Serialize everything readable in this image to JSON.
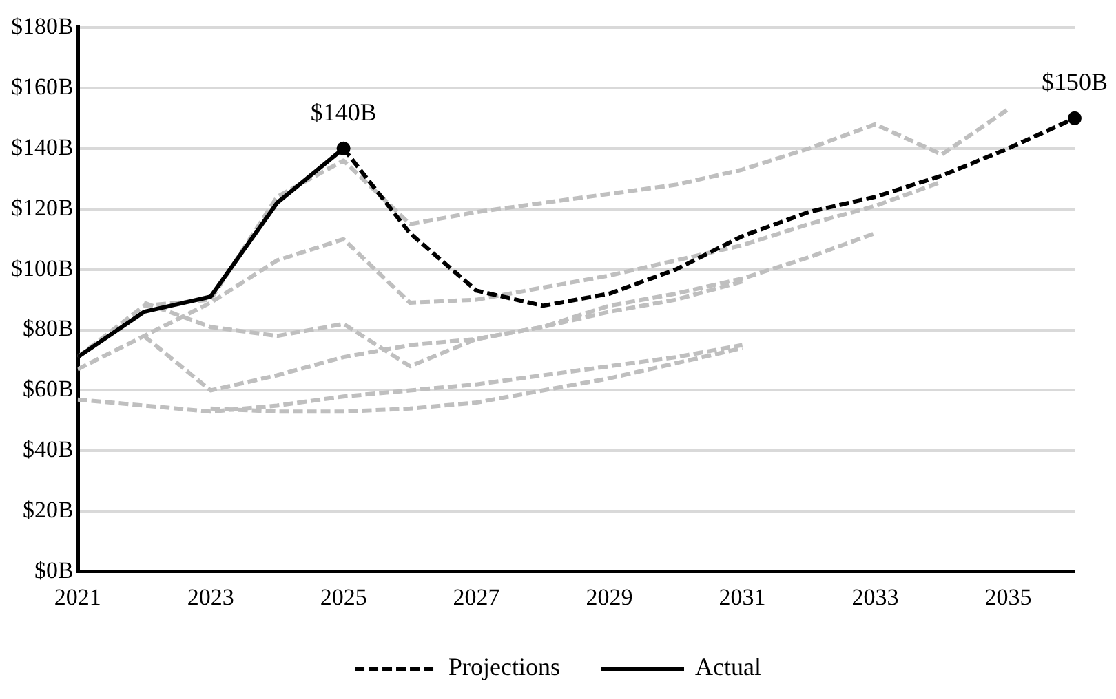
{
  "chart_data": {
    "type": "line",
    "legend": "bottom",
    "grid": "y",
    "marker": "none",
    "xlim": [
      2021,
      2036
    ],
    "xticks": [
      2021,
      2023,
      2025,
      2027,
      2029,
      2031,
      2033,
      2035
    ],
    "ylim": [
      0,
      180
    ],
    "yticks": [
      {
        "value": 0,
        "label": "$0B"
      },
      {
        "value": 20,
        "label": "$20B"
      },
      {
        "value": 40,
        "label": "$40B"
      },
      {
        "value": 60,
        "label": "$60B"
      },
      {
        "value": 80,
        "label": "$80B"
      },
      {
        "value": 100,
        "label": "$100B"
      },
      {
        "value": 120,
        "label": "$120B"
      },
      {
        "value": 140,
        "label": "$140B"
      },
      {
        "value": 160,
        "label": "$160B"
      },
      {
        "value": 180,
        "label": "$180B"
      }
    ],
    "annotations": [
      {
        "text": "$140B",
        "x": 2025,
        "y": 140
      },
      {
        "text": "$150B",
        "x": 2036,
        "y": 150
      }
    ],
    "series": [
      {
        "name": "Projections",
        "color": "#000000",
        "line_style": "dashed",
        "x": [
          2025,
          2026,
          2027,
          2028,
          2029,
          2030,
          2031,
          2032,
          2033,
          2034,
          2035,
          2036
        ],
        "values": [
          140,
          112,
          93,
          88,
          92,
          100,
          111,
          119,
          124,
          131,
          140,
          150
        ]
      },
      {
        "name": "Actual",
        "color": "#000000",
        "line_style": "solid",
        "x": [
          2021,
          2022,
          2023,
          2024,
          2025
        ],
        "values": [
          71,
          86,
          91,
          122,
          140
        ]
      },
      {
        "color": "#bfbfbf",
        "line_style": "dashed",
        "x": [
          2021,
          2022,
          2023,
          2024,
          2025,
          2026,
          2027,
          2028,
          2029,
          2030,
          2031,
          2032,
          2033,
          2034,
          2035
        ],
        "values": [
          71,
          88,
          90,
          124,
          136,
          115,
          119,
          122,
          125,
          128,
          133,
          140,
          148,
          138,
          153
        ]
      },
      {
        "color": "#bfbfbf",
        "line_style": "dashed",
        "x": [
          2021,
          2022,
          2023,
          2024,
          2025,
          2026,
          2027,
          2028,
          2029,
          2030,
          2031,
          2032,
          2033,
          2034
        ],
        "values": [
          67,
          78,
          89,
          103,
          110,
          89,
          90,
          94,
          98,
          103,
          108,
          115,
          121,
          129
        ]
      },
      {
        "color": "#bfbfbf",
        "line_style": "dashed",
        "x": [
          2022,
          2023,
          2024,
          2025,
          2026,
          2027,
          2028,
          2029,
          2030,
          2031,
          2032,
          2033
        ],
        "values": [
          89,
          81,
          78,
          82,
          68,
          77,
          81,
          88,
          92,
          97,
          104,
          112
        ]
      },
      {
        "color": "#bfbfbf",
        "line_style": "dashed",
        "x": [
          2022,
          2023,
          2024,
          2025,
          2026,
          2027,
          2028,
          2029,
          2030,
          2031
        ],
        "values": [
          78,
          60,
          65,
          71,
          75,
          77,
          81,
          86,
          90,
          96
        ]
      },
      {
        "color": "#bfbfbf",
        "line_style": "dashed",
        "x": [
          2021,
          2022,
          2023,
          2024,
          2025,
          2026,
          2027,
          2028,
          2029,
          2030,
          2031
        ],
        "values": [
          57,
          55,
          53,
          55,
          58,
          60,
          62,
          65,
          68,
          71,
          75
        ]
      },
      {
        "color": "#bfbfbf",
        "line_style": "dashed",
        "x": [
          2023,
          2024,
          2025,
          2026,
          2027,
          2028,
          2029,
          2030,
          2031
        ],
        "values": [
          54,
          53,
          53,
          54,
          56,
          60,
          64,
          69,
          74
        ]
      }
    ]
  }
}
